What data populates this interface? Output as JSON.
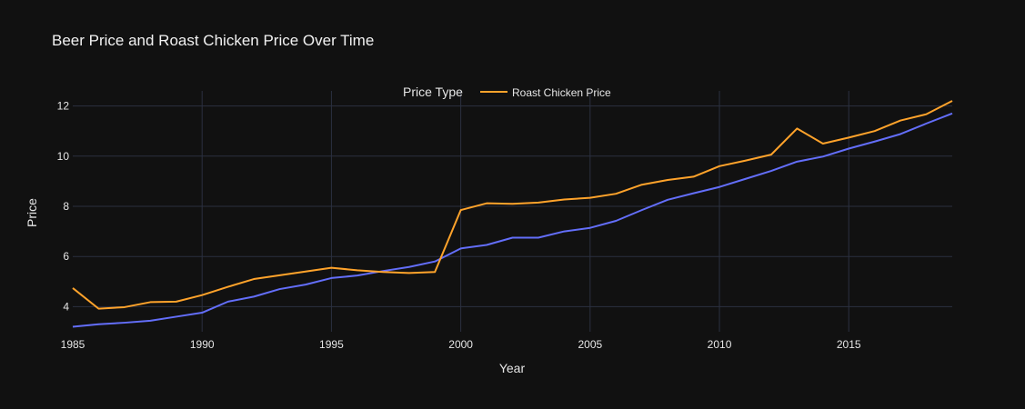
{
  "chart_data": {
    "type": "line",
    "title": "Beer Price and Roast Chicken Price Over Time",
    "xlabel": "Year",
    "ylabel": "Price",
    "legend_title": "Price Type",
    "legend_position": "top-center",
    "grid": true,
    "xlim": [
      1985,
      2019
    ],
    "ylim": [
      3.0,
      12.6
    ],
    "x_ticks": [
      1985,
      1990,
      1995,
      2000,
      2005,
      2010,
      2015
    ],
    "y_ticks": [
      4,
      6,
      8,
      10,
      12
    ],
    "x": [
      1985,
      1986,
      1987,
      1988,
      1989,
      1990,
      1991,
      1992,
      1993,
      1994,
      1995,
      1996,
      1997,
      1998,
      1999,
      2000,
      2001,
      2002,
      2003,
      2004,
      2005,
      2006,
      2007,
      2008,
      2009,
      2010,
      2011,
      2012,
      2013,
      2014,
      2015,
      2016,
      2017,
      2018,
      2019
    ],
    "series": [
      {
        "color": "#636efa",
        "values": [
          3.2,
          3.3,
          3.36,
          3.44,
          3.6,
          3.76,
          4.2,
          4.4,
          4.7,
          4.88,
          5.14,
          5.24,
          5.42,
          5.58,
          5.8,
          6.32,
          6.46,
          6.75,
          6.75,
          7.0,
          7.14,
          7.42,
          7.85,
          8.26,
          8.52,
          8.77,
          9.09,
          9.41,
          9.78,
          9.98,
          10.3,
          10.58,
          10.88,
          11.3,
          11.7
        ]
      },
      {
        "name": "Roast Chicken Price",
        "color": "#ffa32b",
        "values": [
          4.74,
          3.92,
          3.98,
          4.18,
          4.2,
          4.46,
          4.79,
          5.1,
          5.25,
          5.4,
          5.55,
          5.45,
          5.38,
          5.34,
          5.38,
          7.85,
          8.12,
          8.1,
          8.15,
          8.27,
          8.34,
          8.5,
          8.86,
          9.05,
          9.18,
          9.6,
          9.82,
          10.06,
          11.1,
          10.5,
          10.74,
          11.0,
          11.42,
          11.67,
          12.2
        ]
      }
    ]
  }
}
